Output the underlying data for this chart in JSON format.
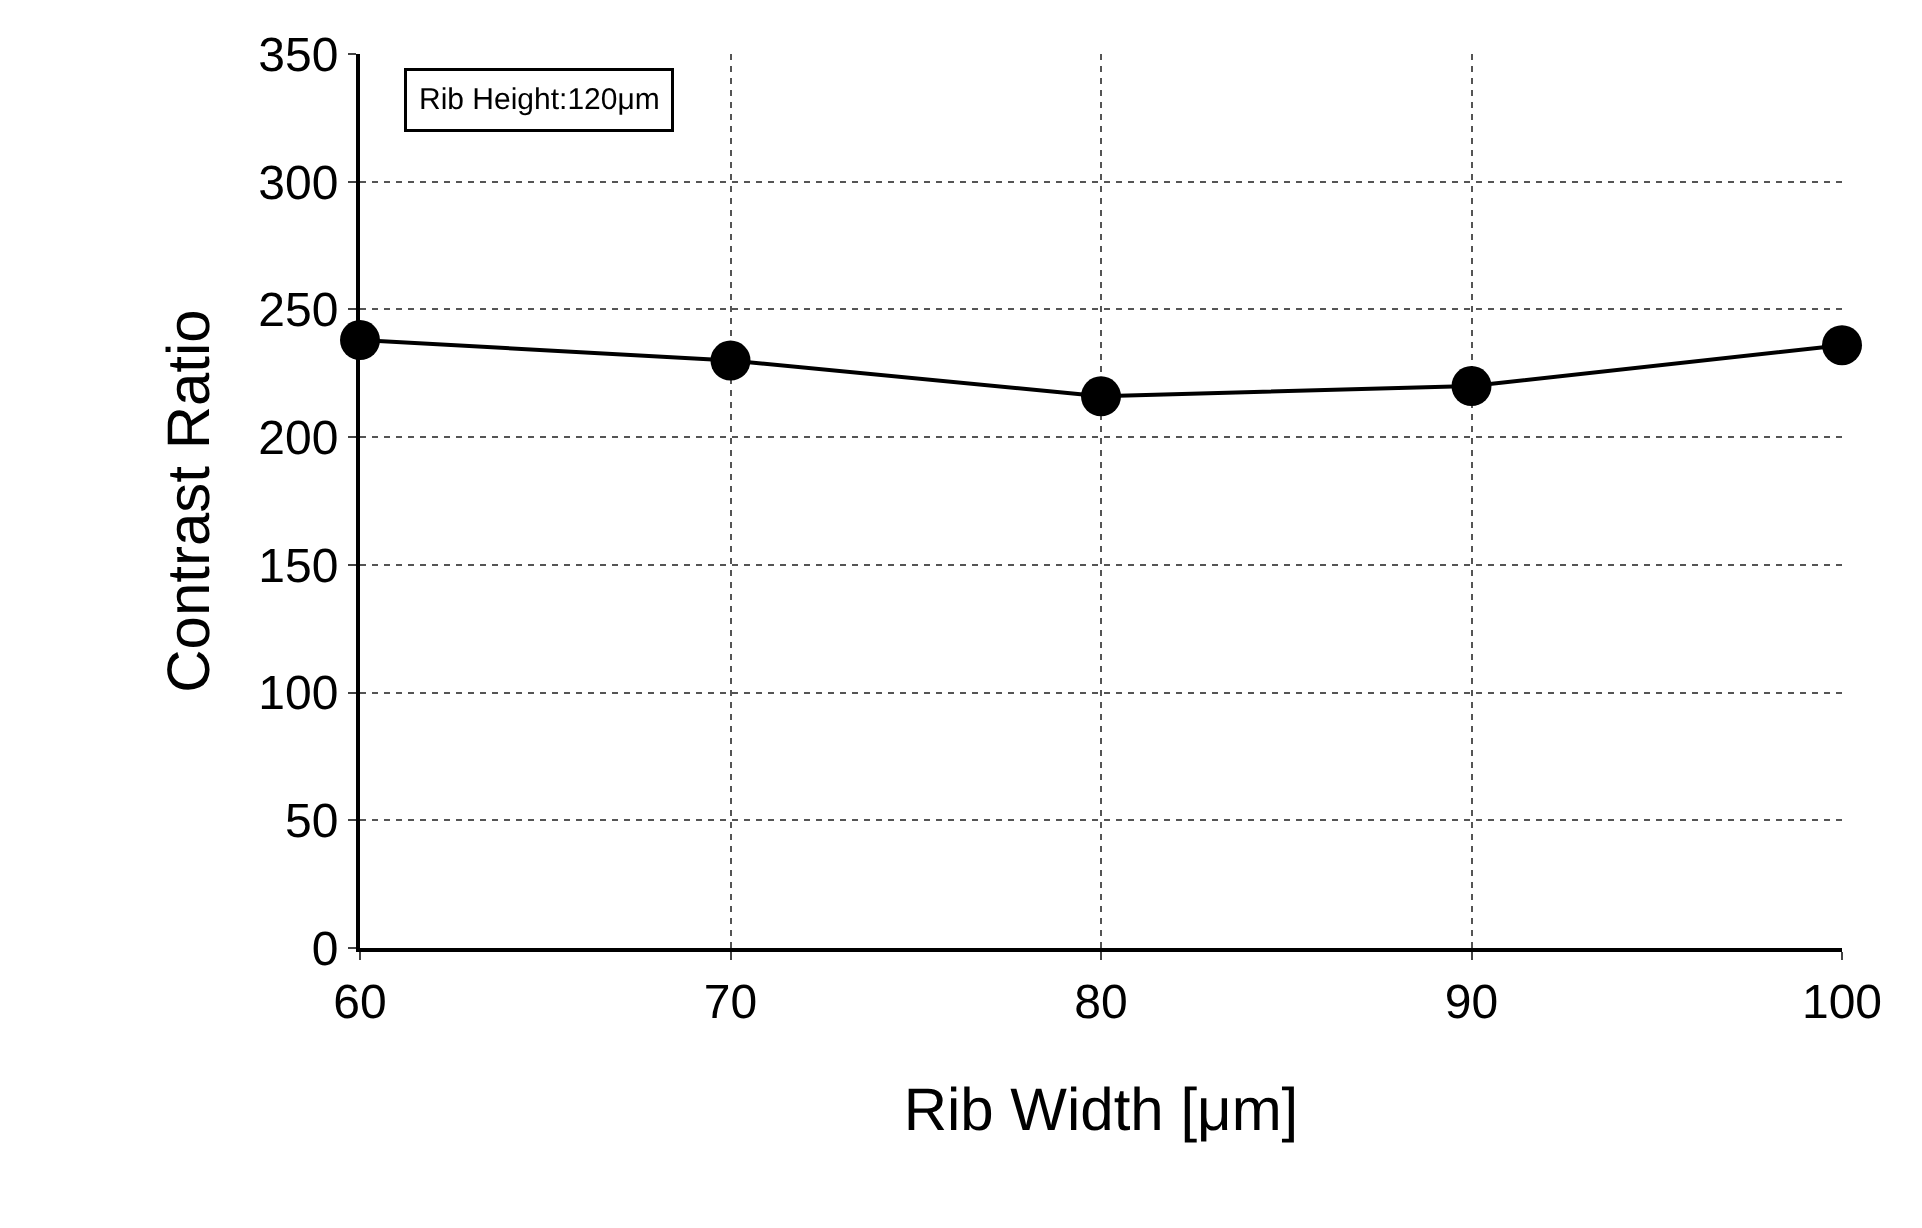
{
  "chart_data": {
    "type": "line",
    "xlabel": "Rib Width [μm]",
    "ylabel": "Contrast Ratio",
    "annotations": [
      "Rib Height:120μm"
    ],
    "x": [
      60,
      70,
      80,
      90,
      100
    ],
    "series": [
      {
        "color": "#000000",
        "values": [
          238,
          230,
          216,
          220,
          236
        ]
      }
    ],
    "xlim": [
      60,
      100
    ],
    "xticks": [
      60,
      70,
      80,
      90,
      100
    ],
    "ylim": [
      0,
      350
    ],
    "yticks": [
      0,
      50,
      100,
      150,
      200,
      250,
      300,
      350
    ],
    "grid": true,
    "marker": "circle",
    "line_style": "solid"
  }
}
